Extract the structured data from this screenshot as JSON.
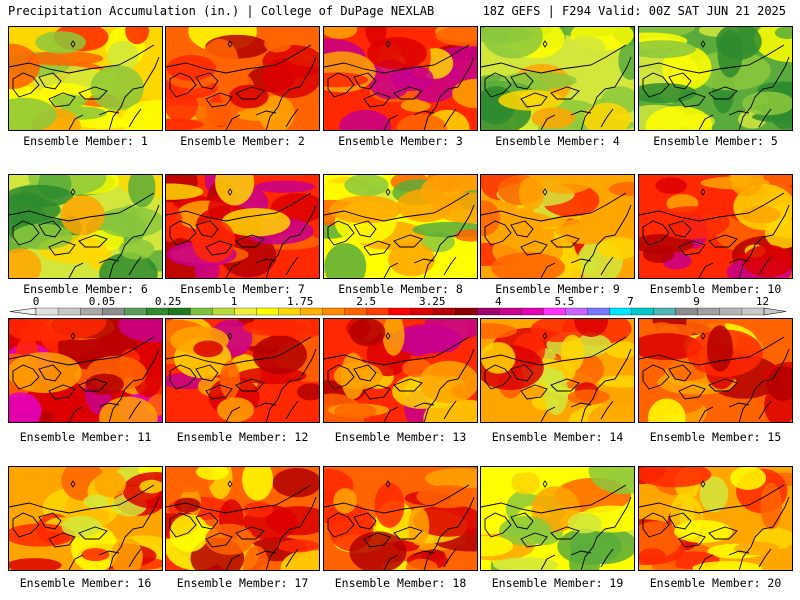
{
  "header": {
    "left_title": "Precipitation Accumulation (in.) | College of DuPage NEXLAB",
    "right_title": "18Z GEFS | F294 Valid: 00Z SAT JUN 21 2025"
  },
  "caption_prefix": "Ensemble Member: ",
  "members": [
    {
      "id": 1,
      "label": "Ensemble Member: 1"
    },
    {
      "id": 2,
      "label": "Ensemble Member: 2"
    },
    {
      "id": 3,
      "label": "Ensemble Member: 3"
    },
    {
      "id": 4,
      "label": "Ensemble Member: 4"
    },
    {
      "id": 5,
      "label": "Ensemble Member: 5"
    },
    {
      "id": 6,
      "label": "Ensemble Member: 6"
    },
    {
      "id": 7,
      "label": "Ensemble Member: 7"
    },
    {
      "id": 8,
      "label": "Ensemble Member: 8"
    },
    {
      "id": 9,
      "label": "Ensemble Member: 9"
    },
    {
      "id": 10,
      "label": "Ensemble Member: 10"
    },
    {
      "id": 11,
      "label": "Ensemble Member: 11"
    },
    {
      "id": 12,
      "label": "Ensemble Member: 12"
    },
    {
      "id": 13,
      "label": "Ensemble Member: 13"
    },
    {
      "id": 14,
      "label": "Ensemble Member: 14"
    },
    {
      "id": 15,
      "label": "Ensemble Member: 15"
    },
    {
      "id": 16,
      "label": "Ensemble Member: 16"
    },
    {
      "id": 17,
      "label": "Ensemble Member: 17"
    },
    {
      "id": 18,
      "label": "Ensemble Member: 18"
    },
    {
      "id": 19,
      "label": "Ensemble Member: 19"
    },
    {
      "id": 20,
      "label": "Ensemble Member: 20"
    }
  ],
  "colorbar": {
    "tick_labels": [
      "0",
      "0.05",
      "0.25",
      "1",
      "1.75",
      "2.5",
      "3.25",
      "4",
      "5.5",
      "7",
      "9",
      "12"
    ],
    "colors": [
      "#e0e0e0",
      "#c8c8c8",
      "#a8a8a8",
      "#8c8c8c",
      "#5a9e5a",
      "#2e8b2e",
      "#1f7a1f",
      "#7cc03c",
      "#b8dc3c",
      "#f0f03c",
      "#ffff00",
      "#ffd700",
      "#ffb000",
      "#ff8c00",
      "#ff6400",
      "#ff3c00",
      "#ff0000",
      "#dc0000",
      "#b40000",
      "#8c0000",
      "#a0006e",
      "#c8008c",
      "#e600b4",
      "#ff32ff",
      "#c864ff",
      "#7878ff",
      "#00e6ff",
      "#00c8c8",
      "#50b4b4",
      "#8c8c8c",
      "#a0a0a0",
      "#b4b4b4",
      "#c8c8c8"
    ]
  }
}
